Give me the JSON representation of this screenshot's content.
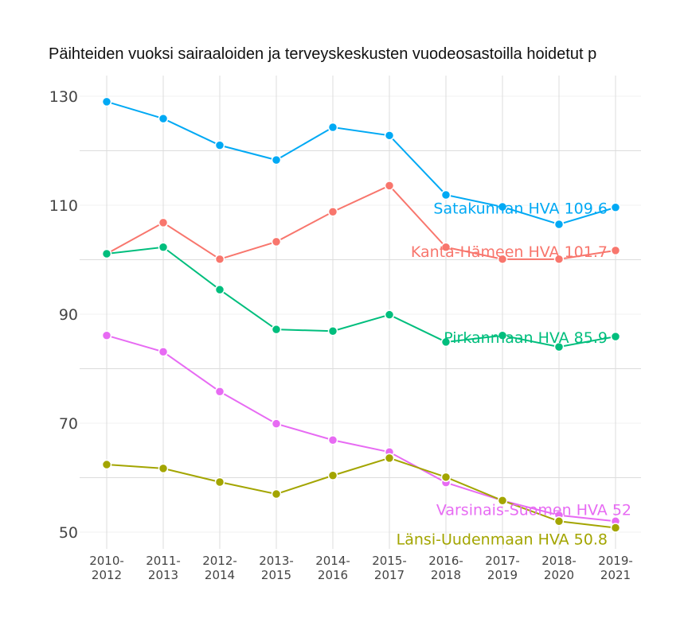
{
  "chart_data": {
    "type": "line",
    "title": "Päihteiden vuoksi sairaaloiden ja terveyskeskusten vuodeosastoilla hoidetut p",
    "categories": [
      "2010-\n2012",
      "2011-\n2013",
      "2012-\n2014",
      "2013-\n2015",
      "2014-\n2016",
      "2015-\n2017",
      "2016-\n2018",
      "2017-\n2019",
      "2018-\n2020",
      "2019-\n2021"
    ],
    "yticks": [
      50,
      70,
      90,
      110,
      130
    ],
    "ylim": [
      48,
      132
    ],
    "grid": true,
    "legend": "none (end labels)",
    "series": [
      {
        "name": "Satakunnan HVA",
        "label": "Satakunnan HVA 109.6",
        "color": "#00A9F4",
        "values": [
          129.0,
          125.9,
          121.0,
          118.3,
          124.3,
          122.8,
          111.9,
          109.7,
          106.5,
          109.6
        ]
      },
      {
        "name": "Kanta-Hämeen HVA",
        "label": "Kanta-Hämeen HVA 101.7",
        "color": "#F8766D",
        "values": [
          101.1,
          106.8,
          100.1,
          103.3,
          108.8,
          113.6,
          102.3,
          100.1,
          100.1,
          101.7
        ]
      },
      {
        "name": "Pirkanmaan HVA",
        "label": "Pirkanmaan HVA 85.9",
        "color": "#00BE7D",
        "values": [
          101.1,
          102.3,
          94.5,
          87.2,
          86.9,
          89.9,
          84.9,
          86.1,
          84.0,
          85.9
        ]
      },
      {
        "name": "Varsinais-Suomen HVA",
        "label": "Varsinais-Suomen HVA 52",
        "color": "#E76BF3",
        "values": [
          86.1,
          83.1,
          75.8,
          69.9,
          66.9,
          64.7,
          59.1,
          55.8,
          53.1,
          52.0
        ]
      },
      {
        "name": "Länsi-Uudenmaan HVA",
        "label": "Länsi-Uudenmaan HVA 50.8",
        "color": "#A3A500",
        "values": [
          62.4,
          61.7,
          59.2,
          57.0,
          60.4,
          63.6,
          60.1,
          55.8,
          52.0,
          50.8
        ]
      }
    ]
  }
}
